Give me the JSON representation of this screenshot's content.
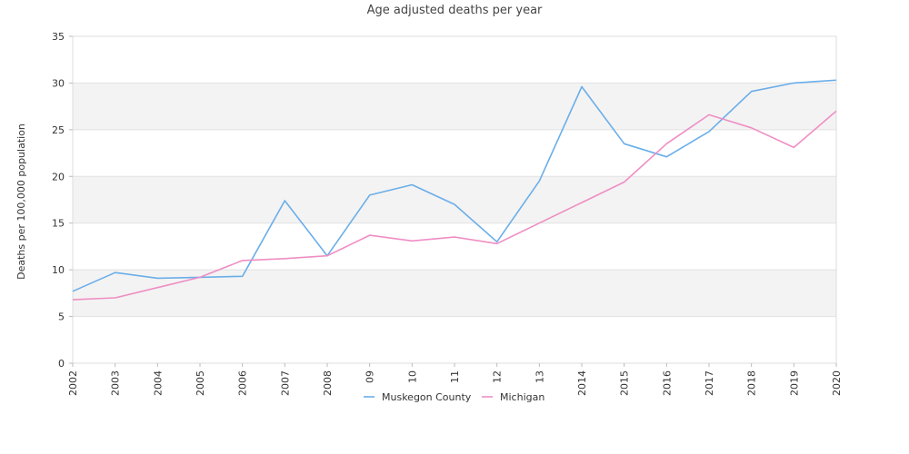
{
  "chart_data": {
    "type": "line",
    "title": "Age adjusted deaths per year",
    "xlabel": "",
    "ylabel": "Deaths per 100,000 population",
    "ylim": [
      0,
      35
    ],
    "yticks": [
      0,
      5,
      10,
      15,
      20,
      25,
      30,
      35
    ],
    "categories": [
      "2002",
      "2003",
      "2004",
      "2005",
      "2006",
      "2007",
      "2008",
      "09",
      "10",
      "11",
      "12",
      "13",
      "2014",
      "2015",
      "2016",
      "2017",
      "2018",
      "2019",
      "2020"
    ],
    "grid": "horizontal alternating bands",
    "legend_position": "bottom",
    "series": [
      {
        "name": "Muskegon County",
        "color": "#6aaee9",
        "values": [
          7.7,
          9.7,
          9.1,
          9.2,
          9.3,
          17.4,
          11.5,
          18.0,
          19.1,
          17.0,
          13.0,
          19.5,
          29.6,
          23.5,
          22.1,
          24.8,
          29.1,
          30.0,
          30.3
        ]
      },
      {
        "name": "Michigan",
        "color": "#ef8ec4",
        "values": [
          6.8,
          7.0,
          8.1,
          9.2,
          11.0,
          11.2,
          11.5,
          13.7,
          13.1,
          13.5,
          12.8,
          15.0,
          17.2,
          19.4,
          23.5,
          26.6,
          25.2,
          23.1,
          27.0
        ]
      }
    ]
  }
}
